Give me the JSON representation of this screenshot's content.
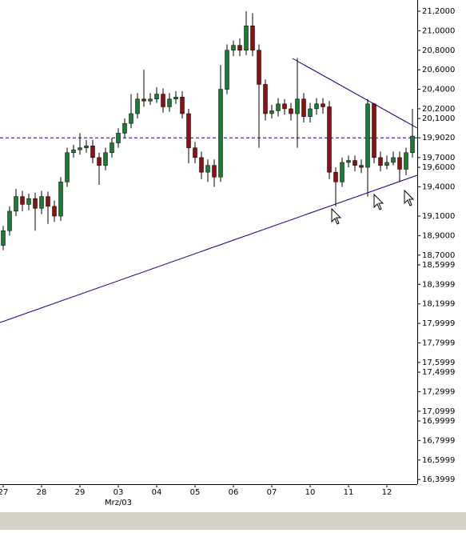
{
  "chart_data": {
    "type": "candlestick",
    "categories": [
      "27",
      null,
      null,
      null,
      null,
      null,
      "28",
      null,
      null,
      null,
      null,
      null,
      "29",
      null,
      null,
      null,
      null,
      null,
      "03",
      null,
      null,
      null,
      null,
      null,
      "04",
      null,
      null,
      null,
      null,
      null,
      "05",
      null,
      null,
      null,
      null,
      null,
      "06",
      null,
      null,
      null,
      null,
      null,
      "07",
      null,
      null,
      null,
      null,
      null,
      "10",
      null,
      null,
      null,
      null,
      null,
      "11",
      null,
      null,
      null,
      null,
      null,
      "12",
      null,
      null,
      null,
      null
    ],
    "month_label": "Mrz/03",
    "open": [
      18.8,
      18.95,
      19.15,
      19.3,
      19.22,
      19.28,
      19.18,
      19.3,
      19.2,
      19.1,
      19.45,
      19.75,
      19.78,
      19.8,
      19.82,
      19.7,
      19.62,
      19.75,
      19.85,
      19.95,
      20.05,
      20.15,
      20.3,
      20.28,
      20.3,
      20.35,
      20.22,
      20.3,
      20.32,
      20.15,
      19.8,
      19.7,
      19.55,
      19.62,
      19.5,
      20.4,
      20.8,
      20.85,
      20.8,
      21.05,
      20.8,
      20.45,
      20.15,
      20.18,
      20.25,
      20.2,
      20.15,
      20.3,
      20.12,
      20.2,
      20.25,
      20.22,
      19.55,
      19.45,
      19.65,
      19.67,
      19.62,
      19.6,
      20.25,
      19.7,
      19.62,
      19.65,
      19.7,
      19.58,
      19.75
    ],
    "high": [
      19.0,
      19.2,
      19.38,
      19.36,
      19.33,
      19.34,
      19.36,
      19.35,
      19.26,
      19.5,
      19.8,
      19.83,
      19.95,
      19.88,
      19.88,
      19.75,
      19.8,
      19.9,
      20.0,
      20.1,
      20.35,
      20.36,
      20.6,
      20.36,
      20.42,
      20.41,
      20.36,
      20.38,
      20.38,
      20.2,
      19.86,
      19.76,
      19.68,
      19.68,
      20.65,
      20.86,
      20.9,
      20.92,
      21.2,
      21.18,
      20.86,
      20.5,
      20.24,
      20.31,
      20.3,
      20.26,
      20.72,
      20.36,
      20.26,
      20.31,
      20.31,
      20.28,
      19.6,
      19.7,
      19.72,
      19.72,
      19.68,
      20.3,
      20.26,
      19.76,
      19.72,
      19.76,
      19.76,
      19.8,
      20.2
    ],
    "low": [
      18.75,
      18.9,
      19.1,
      19.15,
      19.16,
      18.95,
      19.12,
      19.02,
      19.04,
      19.05,
      19.4,
      19.7,
      19.73,
      19.75,
      19.64,
      19.42,
      19.57,
      19.7,
      19.8,
      19.9,
      20.0,
      20.1,
      20.22,
      20.24,
      20.26,
      20.16,
      20.17,
      20.25,
      20.1,
      19.64,
      19.64,
      19.48,
      19.45,
      19.4,
      19.45,
      20.35,
      20.74,
      20.74,
      20.75,
      20.74,
      19.8,
      20.08,
      20.1,
      20.12,
      20.14,
      20.08,
      19.8,
      20.06,
      20.06,
      20.14,
      20.15,
      19.48,
      19.2,
      19.4,
      19.6,
      19.56,
      19.54,
      19.3,
      19.64,
      19.56,
      19.58,
      19.62,
      19.45,
      19.52,
      19.7
    ],
    "close": [
      18.95,
      19.15,
      19.3,
      19.22,
      19.28,
      19.18,
      19.3,
      19.2,
      19.1,
      19.45,
      19.75,
      19.78,
      19.8,
      19.82,
      19.7,
      19.62,
      19.75,
      19.85,
      19.95,
      20.05,
      20.15,
      20.3,
      20.28,
      20.3,
      20.35,
      20.22,
      20.3,
      20.32,
      20.15,
      19.8,
      19.7,
      19.55,
      19.62,
      19.5,
      20.4,
      20.8,
      20.85,
      20.8,
      21.05,
      20.8,
      20.45,
      20.15,
      20.18,
      20.25,
      20.2,
      20.15,
      20.3,
      20.12,
      20.2,
      20.25,
      20.22,
      19.55,
      19.45,
      19.65,
      19.67,
      19.62,
      19.6,
      20.25,
      19.7,
      19.62,
      19.65,
      19.7,
      19.58,
      19.75,
      19.92
    ],
    "up_color": "#1f7a35",
    "down_color": "#8b1010",
    "ylim": [
      16.352,
      21.315
    ],
    "yticks": [
      {
        "value": 21.2,
        "label": "21,2000"
      },
      {
        "value": 21.0,
        "label": "21,0000"
      },
      {
        "value": 20.8,
        "label": "20,8000"
      },
      {
        "value": 20.6,
        "label": "20,6000"
      },
      {
        "value": 20.4,
        "label": "20,4000"
      },
      {
        "value": 20.2,
        "label": "20,2000"
      },
      {
        "value": 20.1,
        "label": "20,1000"
      },
      {
        "value": 19.902,
        "label": "19,9020"
      },
      {
        "value": 19.7,
        "label": "19,7000"
      },
      {
        "value": 19.6,
        "label": "19,6000"
      },
      {
        "value": 19.4,
        "label": "19,4000"
      },
      {
        "value": 19.1,
        "label": "19,1000"
      },
      {
        "value": 18.9,
        "label": "18,9000"
      },
      {
        "value": 18.7,
        "label": "18,7000"
      },
      {
        "value": 18.5999,
        "label": "18,5999"
      },
      {
        "value": 18.3999,
        "label": "18,3999"
      },
      {
        "value": 18.1999,
        "label": "18,1999"
      },
      {
        "value": 17.9999,
        "label": "17,9999"
      },
      {
        "value": 17.7999,
        "label": "17,7999"
      },
      {
        "value": 17.5999,
        "label": "17,5999"
      },
      {
        "value": 17.4999,
        "label": "17,4999"
      },
      {
        "value": 17.2999,
        "label": "17,2999"
      },
      {
        "value": 17.0999,
        "label": "17,0999"
      },
      {
        "value": 16.9999,
        "label": "16,9999"
      },
      {
        "value": 16.7999,
        "label": "16,7999"
      },
      {
        "value": 16.5999,
        "label": "16,5999"
      },
      {
        "value": 16.3999,
        "label": "16,3999"
      }
    ],
    "hline": 19.902,
    "hline_color": "#0000a0",
    "grid": false
  }
}
